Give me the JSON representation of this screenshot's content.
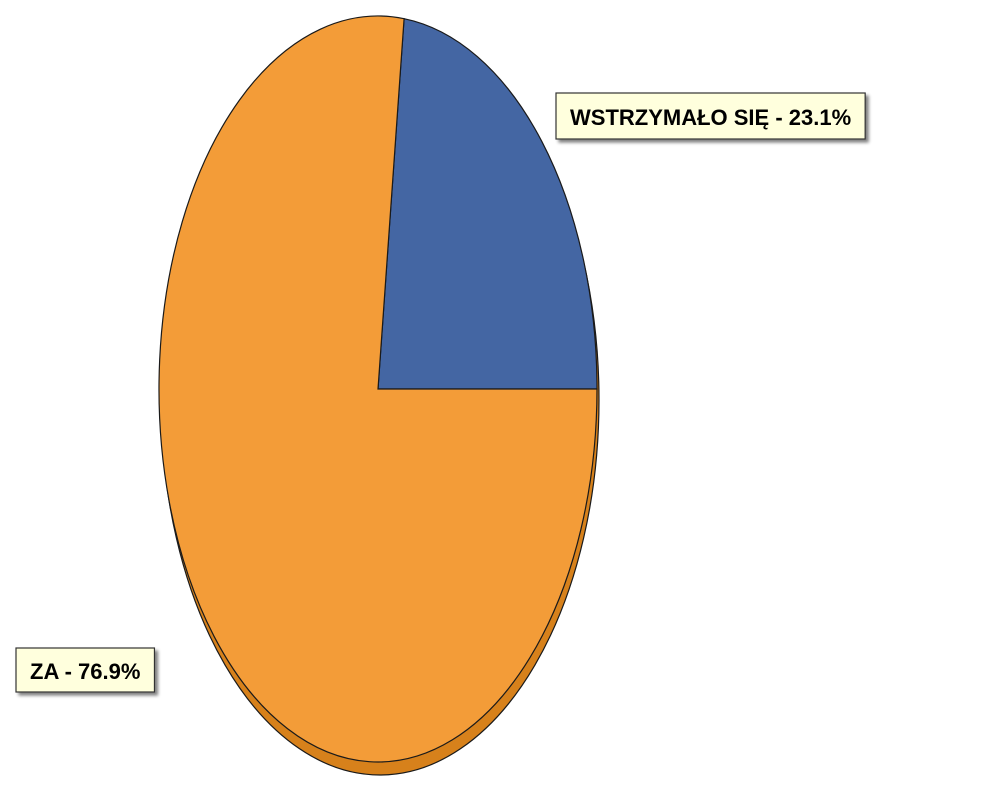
{
  "chart_data": {
    "type": "pie",
    "title": "",
    "slices": [
      {
        "label": "WSTRZYMAŁO SIĘ - 23.1%",
        "category": "WSTRZYMAŁO SIĘ",
        "value": 23.1,
        "color": "#4466a3"
      },
      {
        "label": "ZA - 76.9%",
        "category": "ZA",
        "value": 76.9,
        "color": "#f39c38"
      }
    ],
    "colors": {
      "side_wall": "#d7811b",
      "outline": "#1a1a1a",
      "label_box_fill": "#ffffdd",
      "label_box_border": "#333333"
    },
    "legend": "none"
  }
}
